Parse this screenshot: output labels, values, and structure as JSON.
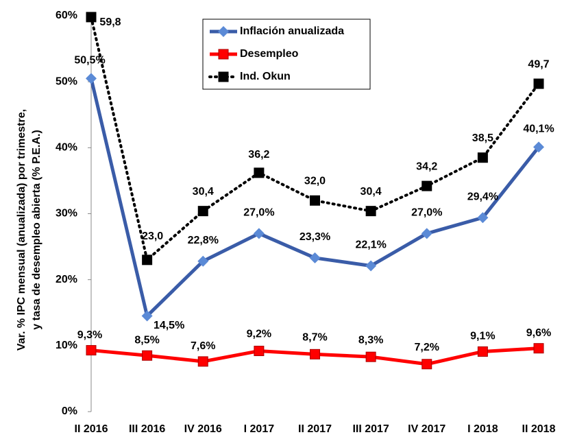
{
  "chart_data": {
    "type": "line",
    "y_label": [
      "Var. % IPC mensual (anualizada) por trimestre,",
      "y tasa de desempleo abierta (% P.E.A.)"
    ],
    "categories": [
      "II 2016",
      "III 2016",
      "IV 2016",
      "I 2017",
      "II 2017",
      "III 2017",
      "IV 2017",
      "I 2018",
      "II 2018"
    ],
    "series": [
      {
        "name": "Inflación anualizada",
        "color": "#3a5ca8",
        "marker_color": "#5b8ad6",
        "marker": "diamond",
        "dash": "solid",
        "values": [
          50.5,
          14.5,
          22.8,
          27.0,
          23.3,
          22.1,
          27.0,
          29.4,
          40.1
        ],
        "value_labels": [
          "50,5%",
          "14,5%",
          "22,8%",
          "27,0%",
          "23,3%",
          "22,1%",
          "27,0%",
          "29,4%",
          "40,1%"
        ]
      },
      {
        "name": "Desempleo",
        "color": "#ff0000",
        "marker_color": "#ff0000",
        "marker": "square",
        "dash": "solid",
        "values": [
          9.3,
          8.5,
          7.6,
          9.2,
          8.7,
          8.3,
          7.2,
          9.1,
          9.6
        ],
        "value_labels": [
          "9,3%",
          "8,5%",
          "7,6%",
          "9,2%",
          "8,7%",
          "8,3%",
          "7,2%",
          "9,1%",
          "9,6%"
        ]
      },
      {
        "name": "Ind. Okun",
        "color": "#000000",
        "marker_color": "#000000",
        "marker": "square",
        "dash": "dotted",
        "values": [
          59.8,
          23.0,
          30.4,
          36.2,
          32.0,
          30.4,
          34.2,
          38.5,
          49.7
        ],
        "value_labels": [
          "59,8",
          "23,0",
          "30,4",
          "36,2",
          "32,0",
          "30,4",
          "34,2",
          "38,5",
          "49,7"
        ]
      }
    ],
    "ylim": [
      0,
      60
    ],
    "yticks": [
      {
        "value": 0,
        "label": "0%"
      },
      {
        "value": 10,
        "label": "10%"
      },
      {
        "value": 20,
        "label": "20%"
      },
      {
        "value": 30,
        "label": "30%"
      },
      {
        "value": 40,
        "label": "40%"
      },
      {
        "value": 50,
        "label": "50%"
      },
      {
        "value": 60,
        "label": "60%"
      }
    ],
    "grid": false,
    "legend": "top"
  }
}
